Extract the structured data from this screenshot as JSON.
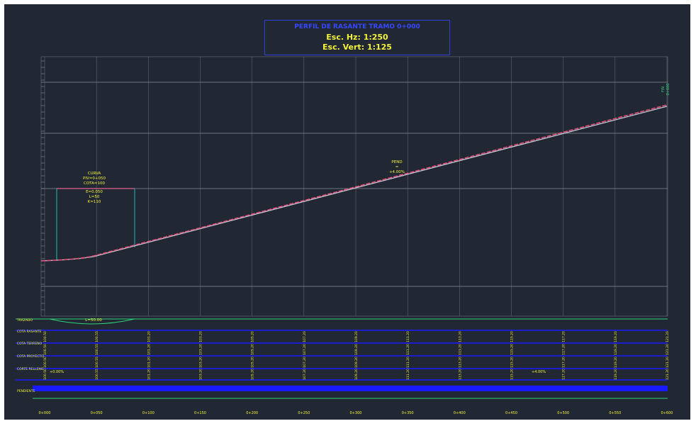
{
  "title": {
    "line1": "PERFIL DE RASANTE TRAMO 0+000",
    "line2": "Esc. Hz: 1:250",
    "line3": "Esc. Vert: 1:125"
  },
  "colors": {
    "background": "#222833",
    "profile": "#e0507a",
    "ground": "#c8c8d8",
    "grid": "#8a8f9a",
    "band": "#1a1aff",
    "text": "#f2f23a",
    "curve": "#2fd07a",
    "callout": "#1fa0a0"
  },
  "bands": [
    {
      "label": "TRAZADO"
    },
    {
      "label": "COTA RASANTE"
    },
    {
      "label": "COTA TERRENO"
    },
    {
      "label": "COTA PROYECTO"
    },
    {
      "label": "CORTE RELLENO"
    },
    {
      "label": "PENDIENTE"
    }
  ],
  "annotations": {
    "curve_length": "L=50.00",
    "vertical_curve_box": [
      "CURVA",
      "PIV=0+050",
      "COTA=100",
      "E=0.050",
      "L=50",
      "K=110"
    ],
    "grade_note": [
      "PEND",
      "=",
      "+4.00%"
    ],
    "end_label": [
      "FIN",
      "0+600"
    ],
    "pendiente_values": [
      "+0.00%",
      "+4.00%"
    ]
  },
  "stations": [
    "0+000",
    "0+050",
    "0+100",
    "0+150",
    "0+200",
    "0+250",
    "0+300",
    "0+350",
    "0+400",
    "0+450",
    "0+500",
    "0+550",
    "0+600"
  ],
  "elevations_rasante": [
    "100.50",
    "100.55",
    "101.20",
    "103.20",
    "105.20",
    "107.20",
    "109.20",
    "111.20",
    "113.20",
    "115.20",
    "117.20",
    "119.20",
    "121.20"
  ]
}
